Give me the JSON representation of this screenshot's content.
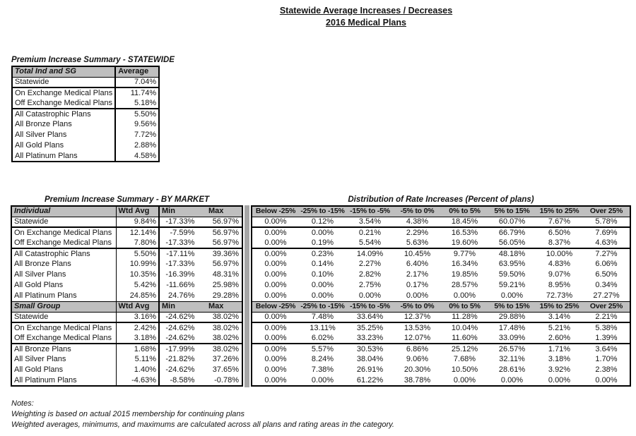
{
  "page": {
    "title_line1": "Statewide Average Increases / Decreases",
    "title_line2": "2016 Medical Plans"
  },
  "statewide_table": {
    "title": "Premium Increase Summary - STATEWIDE",
    "header": {
      "label": "Total Ind and SG",
      "value": "Average"
    },
    "groups": [
      {
        "rows": [
          {
            "label": "Statewide",
            "value": "7.04%"
          }
        ]
      },
      {
        "rows": [
          {
            "label": "On Exchange Medical Plans",
            "value": "11.74%"
          },
          {
            "label": "Off Exchange Medical Plans",
            "value": "5.18%"
          }
        ]
      },
      {
        "rows": [
          {
            "label": "All Catastrophic Plans",
            "value": "5.50%"
          },
          {
            "label": "All Bronze Plans",
            "value": "9.56%"
          },
          {
            "label": "All Silver Plans",
            "value": "7.72%"
          },
          {
            "label": "All Gold Plans",
            "value": "2.88%"
          },
          {
            "label": "All Platinum Plans",
            "value": "4.58%"
          }
        ]
      }
    ]
  },
  "by_market_table": {
    "title": "Premium Increase Summary - BY MARKET",
    "col_headers": {
      "wtd_avg": "Wtd Avg",
      "min": "Min",
      "max": "Max"
    },
    "sections": [
      {
        "name": "Individual",
        "groups": [
          {
            "rows": [
              {
                "label": "Statewide",
                "wtd_avg": "9.84%",
                "min": "-17.33%",
                "max": "56.97%"
              }
            ]
          },
          {
            "rows": [
              {
                "label": "On Exchange Medical Plans",
                "wtd_avg": "12.14%",
                "min": "-7.59%",
                "max": "56.97%"
              },
              {
                "label": "Off Exchange Medical Plans",
                "wtd_avg": "7.80%",
                "min": "-17.33%",
                "max": "56.97%"
              }
            ]
          },
          {
            "rows": [
              {
                "label": "All Catastrophic Plans",
                "wtd_avg": "5.50%",
                "min": "-17.11%",
                "max": "39.36%"
              },
              {
                "label": "All Bronze Plans",
                "wtd_avg": "10.99%",
                "min": "-17.33%",
                "max": "56.97%"
              },
              {
                "label": "All Silver Plans",
                "wtd_avg": "10.35%",
                "min": "-16.39%",
                "max": "48.31%"
              },
              {
                "label": "All Gold Plans",
                "wtd_avg": "5.42%",
                "min": "-11.66%",
                "max": "25.98%"
              },
              {
                "label": "All Platinum Plans",
                "wtd_avg": "24.85%",
                "min": "24.76%",
                "max": "29.28%"
              }
            ]
          }
        ]
      },
      {
        "name": "Small Group",
        "groups": [
          {
            "rows": [
              {
                "label": "Statewide",
                "wtd_avg": "3.16%",
                "min": "-24.62%",
                "max": "38.02%"
              }
            ]
          },
          {
            "rows": [
              {
                "label": "On Exchange Medical Plans",
                "wtd_avg": "2.42%",
                "min": "-24.62%",
                "max": "38.02%"
              },
              {
                "label": "Off Exchange Medical Plans",
                "wtd_avg": "3.18%",
                "min": "-24.62%",
                "max": "38.02%"
              }
            ]
          },
          {
            "rows": [
              {
                "label": "All Bronze Plans",
                "wtd_avg": "1.68%",
                "min": "-17.99%",
                "max": "38.02%"
              },
              {
                "label": "All Silver Plans",
                "wtd_avg": "5.11%",
                "min": "-21.82%",
                "max": "37.26%"
              },
              {
                "label": "All Gold Plans",
                "wtd_avg": "1.40%",
                "min": "-24.62%",
                "max": "37.65%"
              },
              {
                "label": "All Platinum Plans",
                "wtd_avg": "-4.63%",
                "min": "-8.58%",
                "max": "-0.78%"
              }
            ]
          }
        ]
      }
    ]
  },
  "distribution_table": {
    "title": "Distribution of Rate Increases (Percent of plans)",
    "col_headers": [
      "Below -25%",
      "-25% to -15%",
      "-15% to -5%",
      "-5% to 0%",
      "0% to 5%",
      "5% to 15%",
      "15% to 25%",
      "Over 25%"
    ],
    "sections": [
      {
        "name": "Individual",
        "groups": [
          {
            "rows": [
              [
                "0.00%",
                "0.12%",
                "3.54%",
                "4.38%",
                "18.45%",
                "60.07%",
                "7.67%",
                "5.78%"
              ]
            ]
          },
          {
            "rows": [
              [
                "0.00%",
                "0.00%",
                "0.21%",
                "2.29%",
                "16.53%",
                "66.79%",
                "6.50%",
                "7.69%"
              ],
              [
                "0.00%",
                "0.19%",
                "5.54%",
                "5.63%",
                "19.60%",
                "56.05%",
                "8.37%",
                "4.63%"
              ]
            ]
          },
          {
            "rows": [
              [
                "0.00%",
                "0.23%",
                "14.09%",
                "10.45%",
                "9.77%",
                "48.18%",
                "10.00%",
                "7.27%"
              ],
              [
                "0.00%",
                "0.14%",
                "2.27%",
                "6.40%",
                "16.34%",
                "63.95%",
                "4.83%",
                "6.06%"
              ],
              [
                "0.00%",
                "0.10%",
                "2.82%",
                "2.17%",
                "19.85%",
                "59.50%",
                "9.07%",
                "6.50%"
              ],
              [
                "0.00%",
                "0.00%",
                "2.75%",
                "0.17%",
                "28.57%",
                "59.21%",
                "8.95%",
                "0.34%"
              ],
              [
                "0.00%",
                "0.00%",
                "0.00%",
                "0.00%",
                "0.00%",
                "0.00%",
                "72.73%",
                "27.27%"
              ]
            ]
          }
        ]
      },
      {
        "name": "Small Group",
        "groups": [
          {
            "rows": [
              [
                "0.00%",
                "7.48%",
                "33.64%",
                "12.37%",
                "11.28%",
                "29.88%",
                "3.14%",
                "2.21%"
              ]
            ]
          },
          {
            "rows": [
              [
                "0.00%",
                "13.11%",
                "35.25%",
                "13.53%",
                "10.04%",
                "17.48%",
                "5.21%",
                "5.38%"
              ],
              [
                "0.00%",
                "6.02%",
                "33.23%",
                "12.07%",
                "11.60%",
                "33.09%",
                "2.60%",
                "1.39%"
              ]
            ]
          },
          {
            "rows": [
              [
                "0.00%",
                "5.57%",
                "30.53%",
                "6.86%",
                "25.12%",
                "26.57%",
                "1.71%",
                "3.64%"
              ],
              [
                "0.00%",
                "8.24%",
                "38.04%",
                "9.06%",
                "7.68%",
                "32.11%",
                "3.18%",
                "1.70%"
              ],
              [
                "0.00%",
                "7.38%",
                "26.91%",
                "20.30%",
                "10.50%",
                "28.61%",
                "3.92%",
                "2.38%"
              ],
              [
                "0.00%",
                "0.00%",
                "61.22%",
                "38.78%",
                "0.00%",
                "0.00%",
                "0.00%",
                "0.00%"
              ]
            ]
          }
        ]
      }
    ]
  },
  "notes": {
    "heading": "Notes:",
    "lines": [
      "Weighting is based on actual 2015 membership for continuing plans",
      "Weighted averages, minimums, and maximums are calculated across all plans and rating areas in the category."
    ]
  },
  "colors": {
    "header_bg": "#bfbfbf",
    "divider": "#a6a6a6",
    "border": "#000000",
    "page_bg": "#ffffff"
  }
}
